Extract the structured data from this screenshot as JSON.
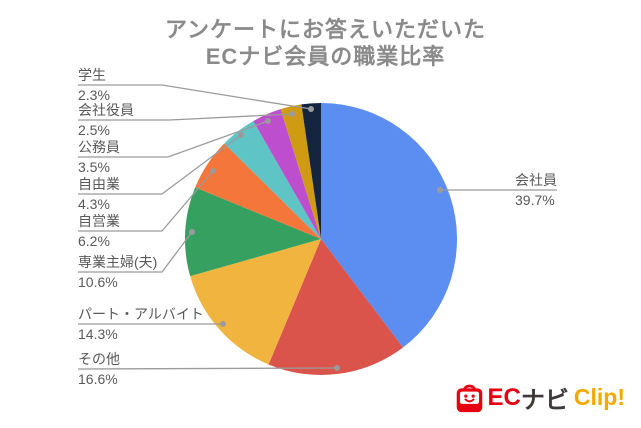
{
  "title": {
    "line1": "アンケートにお答えいただいた",
    "line2": "ECナビ会員の職業比率"
  },
  "chart_data": {
    "type": "pie",
    "title": "アンケートにお答えいただいた ECナビ会員の職業比率",
    "categories": [
      "会社員",
      "その他",
      "パート・アルバイト",
      "専業主婦(夫)",
      "自営業",
      "自由業",
      "公務員",
      "会社役員",
      "学生"
    ],
    "values": [
      39.7,
      16.6,
      14.3,
      10.6,
      6.2,
      4.3,
      3.5,
      2.5,
      2.3
    ],
    "value_labels": [
      "39.7%",
      "16.6%",
      "14.3%",
      "10.6%",
      "6.2%",
      "4.3%",
      "3.5%",
      "2.5%",
      "2.3%"
    ],
    "colors": [
      "#5b8ef0",
      "#da544b",
      "#f0b43f",
      "#35a05f",
      "#f5763b",
      "#5ec4c6",
      "#bd4fce",
      "#cf9b13",
      "#15253f"
    ],
    "start_angle": "12 o'clock, clockwise",
    "legend_position": "leader-line labels (no legend box)"
  },
  "style": {
    "background": "#ffffff",
    "title_color": "#8a8a8a",
    "label_color": "#595959",
    "leader_line_color": "#9b9b9b"
  },
  "logo": {
    "icon": "shopping-bag-smiley-icon",
    "text_ec": "EC",
    "text_navi": "ナビ",
    "text_clip": "Clip!",
    "color_red": "#e60012",
    "color_dark": "#3f3a39",
    "color_yellow": "#f5a800"
  }
}
